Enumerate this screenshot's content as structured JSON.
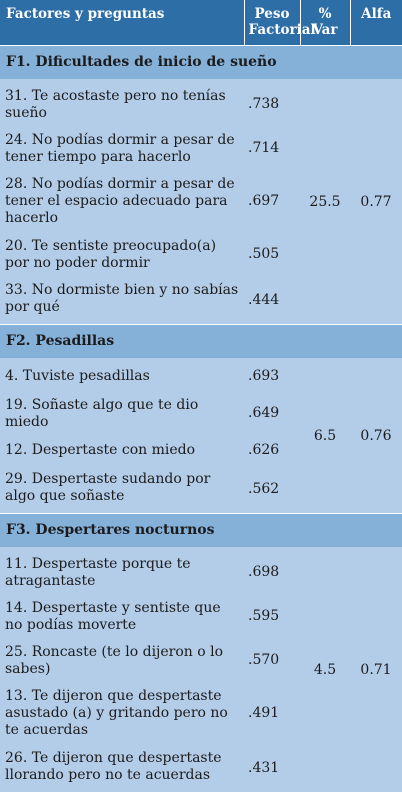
{
  "header": {
    "col1": "Factores y preguntas",
    "col2a": "Peso",
    "col2b": "Factorial",
    "col3a": "%",
    "col3b": "Var",
    "col4": "Alfa"
  },
  "sections": [
    {
      "title": "F1. Dificultades de inicio de sueño",
      "var": "25.5",
      "alfa": "0.77",
      "items": [
        {
          "text": "31. Te acostaste pero no tenías sueño",
          "w": ".738"
        },
        {
          "text": "24. No podías dormir a pesar de tener tiempo para hacerlo",
          "w": ".714"
        },
        {
          "text": "28. No podías dormir a pesar de tener el espacio adecuado para hacerlo",
          "w": ".697"
        },
        {
          "text": "20. Te sentiste preocupado(a) por no poder dormir",
          "w": ".505"
        },
        {
          "text": "33. No dormiste bien y no sabías por qué",
          "w": ".444"
        }
      ]
    },
    {
      "title": "F2. Pesadillas",
      "var": "6.5",
      "alfa": "0.76",
      "items": [
        {
          "text": "4. Tuviste pesadillas",
          "w": ".693"
        },
        {
          "text": "19. Soñaste algo que te dio miedo",
          "w": ".649"
        },
        {
          "text": "12. Despertaste con miedo",
          "w": ".626"
        },
        {
          "text": "29. Despertaste sudando por algo que soñaste",
          "w": ".562"
        }
      ]
    },
    {
      "title": "F3. Despertares nocturnos",
      "var": "4.5",
      "alfa": "0.71",
      "items": [
        {
          "text": "11. Despertaste porque te atragantaste",
          "w": ".698"
        },
        {
          "text": "14. Despertaste y sentiste que no podías moverte",
          "w": ".595"
        },
        {
          "text": "25. Roncaste (te lo dijeron o lo sabes)",
          "w": ".570"
        },
        {
          "text": "13. Te dijeron que despertaste asustado (a) y gritando pero no te acuerdas",
          "w": ".491"
        },
        {
          "text": "26. Te dijeron que despertaste llorando pero no te acuerdas",
          "w": ".431"
        }
      ]
    }
  ]
}
